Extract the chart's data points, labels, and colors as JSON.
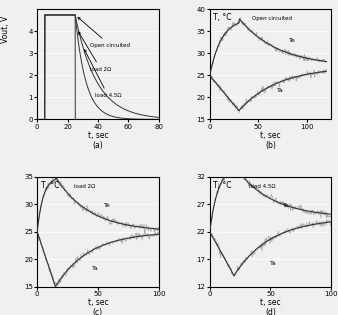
{
  "fig_width": 3.38,
  "fig_height": 3.15,
  "dpi": 100,
  "bg_color": "#f0f0f0",
  "subplot_bg": "#f0f0f0",
  "subplot_labels": [
    "(a)",
    "(b)",
    "(c)",
    "(d)"
  ],
  "line_color_dark": "#333333",
  "line_color_noise": "#aaaaaa",
  "grid_color": "#ffffff",
  "font_size": 5.5,
  "label_font_size": 5.5,
  "tick_font_size": 5,
  "panel_a": {
    "ylabel": "Vout, V",
    "xlabel": "t, sec",
    "ylim": [
      0,
      5
    ],
    "xlim": [
      0,
      80
    ],
    "yticks": [
      0,
      1,
      2,
      3,
      4
    ],
    "xticks": [
      0,
      20,
      40,
      60,
      80
    ],
    "t_pulse_start": 5,
    "t_pulse_end": 25,
    "v_pulse": 4.75,
    "tau_2ohm": 7,
    "tau_45ohm": 14
  },
  "panel_b": {
    "xlabel": "t, sec",
    "ylim": [
      15,
      40
    ],
    "xlim": [
      0,
      125
    ],
    "yticks": [
      15,
      20,
      25,
      30,
      35,
      40
    ],
    "xticks": [
      0,
      50,
      100
    ],
    "title": "Open circuited",
    "Te_label": "Te",
    "Ta_label": "Ta",
    "T_init": 25,
    "Te_peak": 38,
    "Te_steady": 27,
    "Ta_min": 17,
    "Ta_steady": 27,
    "peak_t": 30,
    "tau_Te_rise": 12,
    "tau_Te_fall": 40,
    "tau_Ta_fall": 40,
    "t_max": 120
  },
  "panel_c": {
    "xlabel": "t, sec",
    "ylim": [
      15,
      35
    ],
    "xlim": [
      0,
      100
    ],
    "yticks": [
      15,
      20,
      25,
      30,
      35
    ],
    "xticks": [
      0,
      50,
      100
    ],
    "title": "load 2Ω",
    "Te_label": "Te",
    "Ta_label": "Ta",
    "T_init": 25,
    "Te_peak": 35,
    "Te_steady": 25,
    "Ta_min": 15,
    "Ta_steady": 25,
    "peak_t": 15,
    "tau_Te_rise": 5,
    "tau_Te_fall": 28,
    "tau_Ta_fall": 28,
    "t_max": 100
  },
  "panel_d": {
    "xlabel": "t, sec",
    "ylim": [
      12,
      32
    ],
    "xlim": [
      0,
      100
    ],
    "yticks": [
      12,
      17,
      22,
      27,
      32
    ],
    "xticks": [
      0,
      50,
      100
    ],
    "title": "load 4.5Ω",
    "Te_label": "Te",
    "Ta_label": "Ta",
    "T_init": 22,
    "Te_peak": 34,
    "Te_steady": 24.5,
    "Ta_min": 14,
    "Ta_steady": 24.5,
    "peak_t": 20,
    "tau_Te_rise": 7,
    "tau_Te_fall": 30,
    "tau_Ta_fall": 30,
    "t_max": 100
  }
}
